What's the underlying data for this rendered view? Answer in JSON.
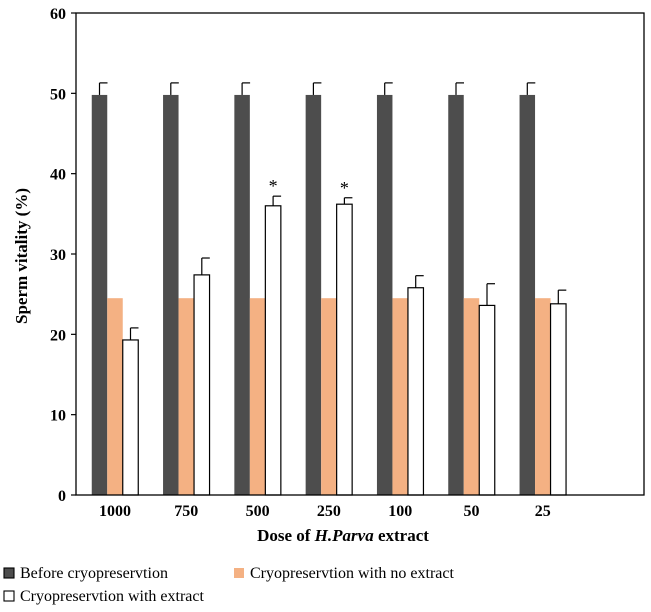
{
  "chart_data": {
    "type": "bar",
    "categories": [
      "1000",
      "750",
      "500",
      "250",
      "100",
      "50",
      "25"
    ],
    "series": [
      {
        "name": "Before cryopreservtion",
        "color": "#4d4d4d",
        "values": [
          49.8,
          49.8,
          49.8,
          49.8,
          49.8,
          49.8,
          49.8
        ],
        "errors": [
          1.5,
          1.5,
          1.5,
          1.5,
          1.5,
          1.5,
          1.5
        ]
      },
      {
        "name": "Cryopreservtion with no extract",
        "color": "#f4b183",
        "values": [
          24.5,
          24.5,
          24.5,
          24.5,
          24.5,
          24.5,
          24.5
        ],
        "errors": [
          0,
          0,
          0,
          0,
          0,
          0,
          0
        ]
      },
      {
        "name": "Cryopreservtion with extract",
        "color": "#ffffff",
        "values": [
          19.3,
          27.4,
          36.0,
          36.2,
          25.8,
          23.6,
          23.8
        ],
        "errors": [
          1.5,
          2.1,
          1.2,
          0.8,
          1.5,
          2.7,
          1.7
        ]
      }
    ],
    "significance": [
      "",
      "",
      "*",
      "*",
      "",
      "",
      ""
    ],
    "xlabel_prefix": "Dose of ",
    "xlabel_italic": "H.Parva",
    "xlabel_suffix": " extract",
    "ylabel": "Sperm vitality (%)",
    "ylim": [
      0,
      60
    ],
    "yticks": [
      0,
      10,
      20,
      30,
      40,
      50,
      60
    ],
    "grid": false,
    "legend_position": "bottom"
  }
}
